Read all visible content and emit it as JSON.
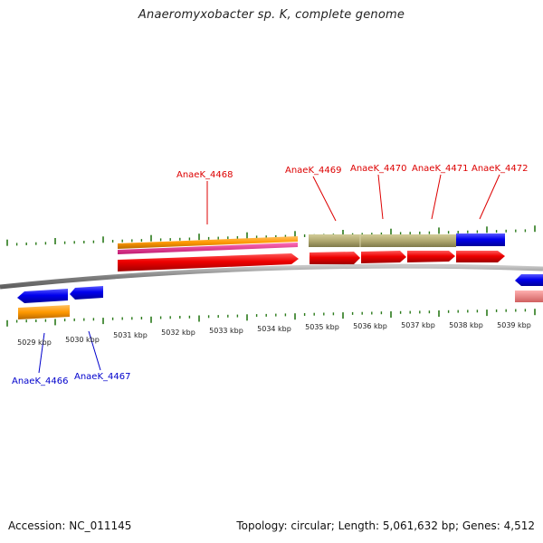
{
  "title": "Anaeromyxobacter sp. K, complete genome",
  "footer": {
    "accession": "Accession: NC_011145",
    "summary": "Topology: circular; Length: 5,061,632 bp; Genes: 4,512"
  },
  "ticks": [
    {
      "label": "5029 kbp"
    },
    {
      "label": "5030 kbp"
    },
    {
      "label": "5031 kbp"
    },
    {
      "label": "5032 kbp"
    },
    {
      "label": "5033 kbp"
    },
    {
      "label": "5034 kbp"
    },
    {
      "label": "5035 kbp"
    },
    {
      "label": "5036 kbp"
    },
    {
      "label": "5037 kbp"
    },
    {
      "label": "5038 kbp"
    },
    {
      "label": "5039 kbp"
    }
  ],
  "genes": [
    {
      "id": "AnaeK_4466",
      "strand": "minus",
      "color": "#0000ee"
    },
    {
      "id": "AnaeK_4467",
      "strand": "minus",
      "color": "#0000ee"
    },
    {
      "id": "AnaeK_4468",
      "strand": "plus",
      "color": "#ee0000"
    },
    {
      "id": "AnaeK_4469",
      "strand": "plus",
      "color": "#ee0000"
    },
    {
      "id": "AnaeK_4470",
      "strand": "plus",
      "color": "#ee0000"
    },
    {
      "id": "AnaeK_4471",
      "strand": "plus",
      "color": "#ee0000"
    },
    {
      "id": "AnaeK_4472",
      "strand": "plus",
      "color": "#ee0000"
    }
  ],
  "colors": {
    "forward_gene": "#ee0000",
    "reverse_gene": "#0000ee",
    "tick": "#2a7a1a",
    "backbone": "#8c8c8c",
    "feature_orange": "#ff9900",
    "feature_magenta": "#e8308c",
    "feature_olive": "#b0a870",
    "feature_pink": "#f08080"
  }
}
